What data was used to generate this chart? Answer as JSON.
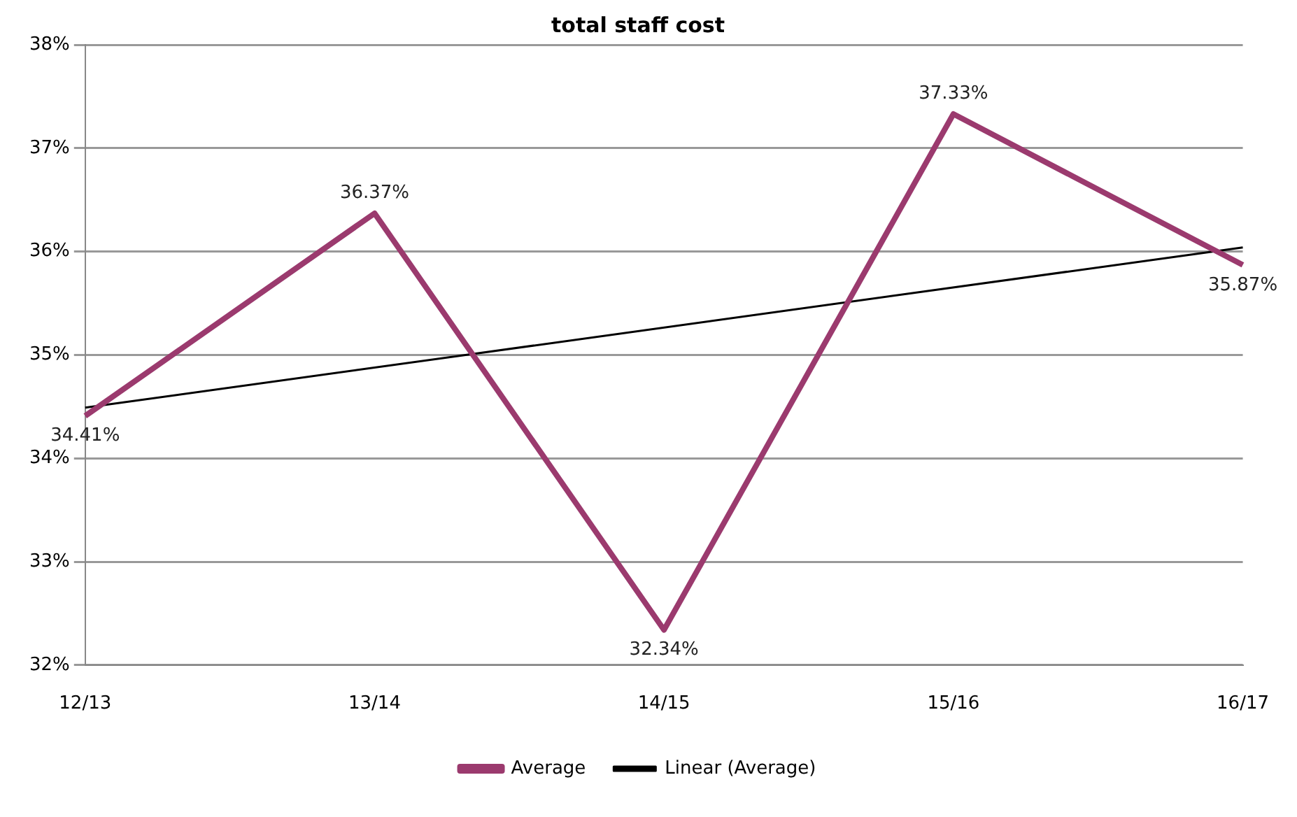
{
  "chart_data": {
    "type": "line",
    "title": "total staff cost",
    "categories": [
      "12/13",
      "13/14",
      "14/15",
      "15/16",
      "16/17"
    ],
    "series": [
      {
        "name": "Average",
        "color": "#9b3a6e",
        "values": [
          34.41,
          36.37,
          32.34,
          37.33,
          35.87
        ],
        "value_labels": [
          "34.41%",
          "36.37%",
          "32.34%",
          "37.33%",
          "35.87%"
        ]
      },
      {
        "name": "Linear (Average)",
        "color": "#000000",
        "values": [
          34.49,
          null,
          null,
          null,
          36.04
        ]
      }
    ],
    "ylim": [
      32,
      38
    ],
    "yticks": [
      {
        "value": 32,
        "label": "32%"
      },
      {
        "value": 33,
        "label": "33%"
      },
      {
        "value": 34,
        "label": "34%"
      },
      {
        "value": 35,
        "label": "35%"
      },
      {
        "value": 36,
        "label": "36%"
      },
      {
        "value": 37,
        "label": "37%"
      },
      {
        "value": 38,
        "label": "38%"
      }
    ],
    "grid": "y",
    "legend": "bottom",
    "marker": "none",
    "line_style": "solid"
  }
}
